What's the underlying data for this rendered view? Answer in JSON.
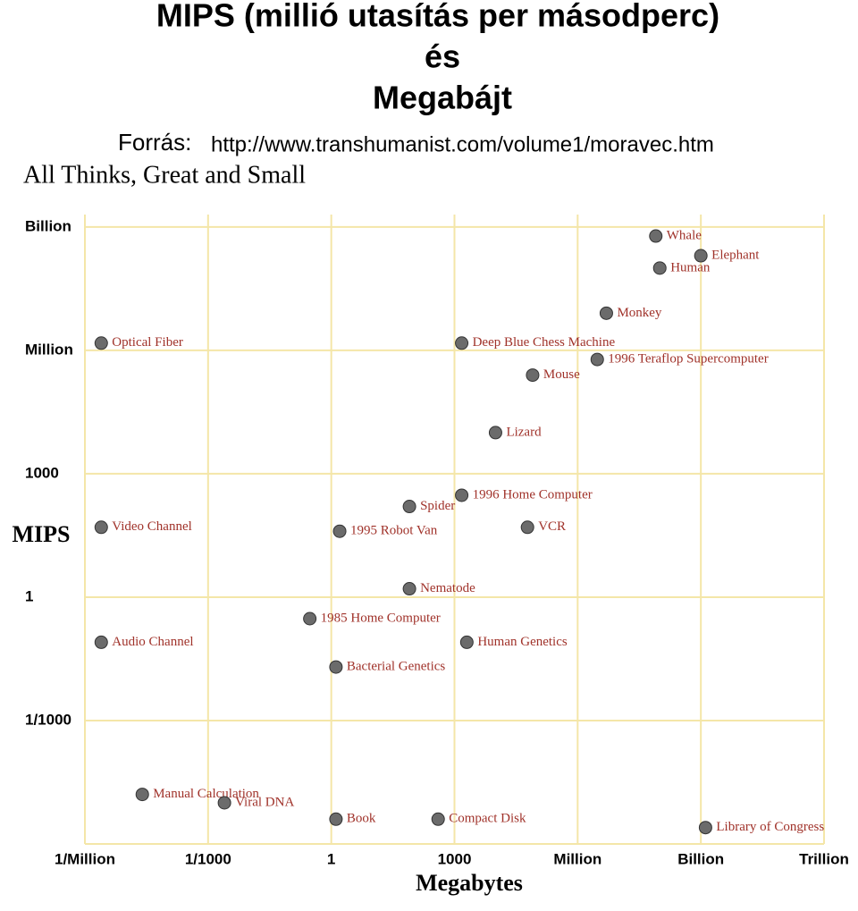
{
  "header": {
    "title_lines": [
      "MIPS (millió utasítás per másodperc)",
      "és",
      "Megabájt"
    ],
    "source_label": "Forrás:",
    "source_url": "http://www.transhumanist.com/volume1/moravec.htm"
  },
  "chart_data": {
    "type": "scatter",
    "title": "All Thinks, Great and Small",
    "x_label": "Megabytes",
    "y_label": "MIPS",
    "log_x": true,
    "log_y": true,
    "grid": true,
    "color": "#a0322a",
    "xlim": [
      1e-06,
      1000000000000
    ],
    "ylim": [
      1e-06,
      2000000000
    ],
    "xticks": [
      {
        "value": 1e-06,
        "label": "1/Million"
      },
      {
        "value": 0.001,
        "label": "1/1000"
      },
      1,
      1000,
      {
        "value": 1000000,
        "label": "Million"
      },
      {
        "value": 1000000000,
        "label": "Billion"
      },
      {
        "value": 1000000000000,
        "label": "Trillion"
      }
    ],
    "yticks": [
      {
        "value": 0.001,
        "label": "1/1000"
      },
      1,
      1000,
      {
        "value": 1000000,
        "label": "Million"
      },
      {
        "value": 1000000000,
        "label": "Billion"
      }
    ],
    "points": [
      {
        "name": "Whale",
        "x": 80000000,
        "y": 600000000
      },
      {
        "name": "Elephant",
        "x": 1000000000,
        "y": 200000000
      },
      {
        "name": "Human",
        "x": 100000000,
        "y": 100000000
      },
      {
        "name": "Monkey",
        "x": 5000000,
        "y": 8000000
      },
      {
        "name": "Deep Blue Chess Machine",
        "x": 1500,
        "y": 1500000
      },
      {
        "name": "Mouse",
        "x": 80000,
        "y": 250000
      },
      {
        "name": "1996 Teraflop Supercomputer",
        "x": 3000000,
        "y": 600000
      },
      {
        "name": "Lizard",
        "x": 10000,
        "y": 10000
      },
      {
        "name": "Optical Fiber",
        "x": 2.5e-06,
        "y": 1500000
      },
      {
        "name": "Spider",
        "x": 80,
        "y": 160
      },
      {
        "name": "1996 Home Computer",
        "x": 1500,
        "y": 300
      },
      {
        "name": "VCR",
        "x": 60000,
        "y": 50
      },
      {
        "name": "Video Channel",
        "x": 2.5e-06,
        "y": 50
      },
      {
        "name": "1995 Robot Van",
        "x": 1.6,
        "y": 40
      },
      {
        "name": "Nematode",
        "x": 80,
        "y": 1.6
      },
      {
        "name": "1985 Home Computer",
        "x": 0.3,
        "y": 0.3
      },
      {
        "name": "Audio Channel",
        "x": 2.5e-06,
        "y": 0.08
      },
      {
        "name": "Human Genetics",
        "x": 2000,
        "y": 0.08
      },
      {
        "name": "Bacterial Genetics",
        "x": 1.3,
        "y": 0.02
      },
      {
        "name": "Manual Calculation",
        "x": 2.5e-05,
        "y": 1.6e-05
      },
      {
        "name": "Viral DNA",
        "x": 0.0025,
        "y": 1e-05
      },
      {
        "name": "Book",
        "x": 1.3,
        "y": 4e-06
      },
      {
        "name": "Compact Disk",
        "x": 400,
        "y": 4e-06
      },
      {
        "name": "Library of Congress",
        "x": 1300000000,
        "y": 2.5e-06
      }
    ]
  }
}
